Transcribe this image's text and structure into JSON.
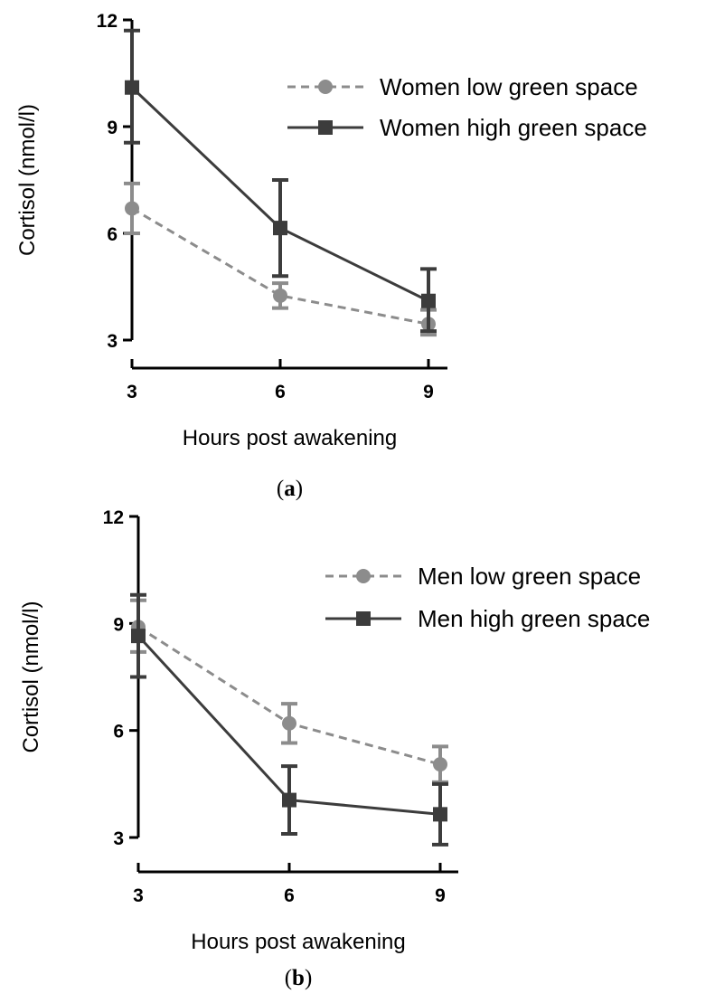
{
  "chart_data": [
    {
      "type": "line",
      "panel_label": "a",
      "xlabel": "Hours post awakening",
      "ylabel": "Cortisol (nmol/l)",
      "x": [
        3,
        6,
        9
      ],
      "x_ticks": [
        "3",
        "6",
        "9"
      ],
      "ylim": [
        3,
        12
      ],
      "y_ticks": [
        "3",
        "6",
        "9",
        "12"
      ],
      "grid": false,
      "legend_position": "top-right",
      "series": [
        {
          "name": "Women low green space",
          "values": [
            6.7,
            4.25,
            3.45
          ],
          "error_upper": [
            7.4,
            4.6,
            3.85
          ],
          "error_lower": [
            6.0,
            3.9,
            3.15
          ],
          "marker": "circle",
          "line_style": "dashed",
          "color": "#8c8c8c"
        },
        {
          "name": "Women high green space",
          "values": [
            10.1,
            6.15,
            4.1
          ],
          "error_upper": [
            11.7,
            7.5,
            5.0
          ],
          "error_lower": [
            8.55,
            4.8,
            3.25
          ],
          "marker": "square",
          "line_style": "solid",
          "color": "#3c3c3c"
        }
      ]
    },
    {
      "type": "line",
      "panel_label": "b",
      "xlabel": "Hours post awakening",
      "ylabel": "Cortisol (nmol/l)",
      "x": [
        3,
        6,
        9
      ],
      "x_ticks": [
        "3",
        "6",
        "9"
      ],
      "ylim": [
        3,
        12
      ],
      "y_ticks": [
        "3",
        "6",
        "9",
        "12"
      ],
      "grid": false,
      "legend_position": "top-right",
      "series": [
        {
          "name": "Men low green space",
          "values": [
            8.9,
            6.2,
            5.05
          ],
          "error_upper": [
            9.65,
            6.75,
            5.55
          ],
          "error_lower": [
            8.2,
            5.65,
            4.55
          ],
          "marker": "circle",
          "line_style": "dashed",
          "color": "#8c8c8c"
        },
        {
          "name": "Men high green space",
          "values": [
            8.65,
            4.05,
            3.65
          ],
          "error_upper": [
            9.8,
            5.0,
            4.5
          ],
          "error_lower": [
            7.5,
            3.1,
            2.8
          ],
          "marker": "square",
          "line_style": "solid",
          "color": "#3c3c3c"
        }
      ]
    }
  ]
}
